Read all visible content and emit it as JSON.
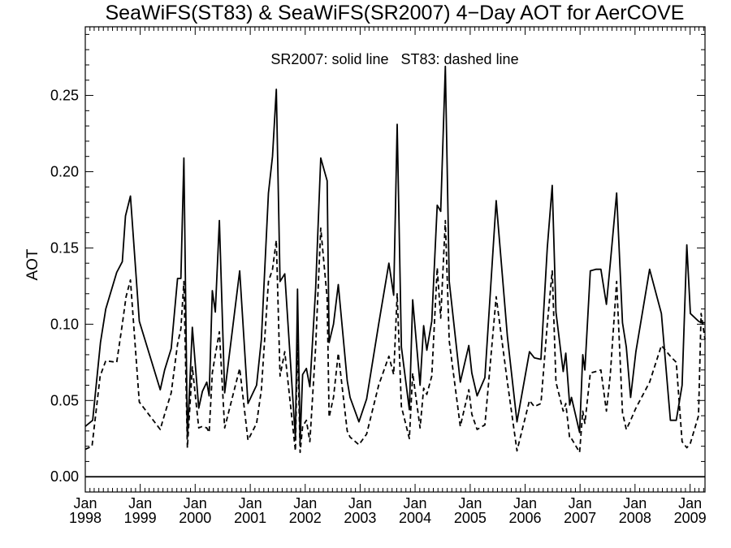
{
  "chart_data": {
    "type": "line",
    "title": "SeaWiFS(ST83) & SeaWiFS(SR2007) 4−Day AOT for AerCOVE",
    "annotation": "SR2007: solid line   ST83: dashed line",
    "xlabel": "",
    "ylabel": "AOT",
    "xlim": [
      "1998-01-01",
      "2009-04-10"
    ],
    "ylim": [
      -0.01,
      0.295
    ],
    "y_ticks": [
      "0.00",
      "0.05",
      "0.10",
      "0.15",
      "0.20",
      "0.25"
    ],
    "x_ticks": [
      {
        "month": "Jan",
        "year": "1998"
      },
      {
        "month": "Jan",
        "year": "1999"
      },
      {
        "month": "Jan",
        "year": "2000"
      },
      {
        "month": "Jan",
        "year": "2001"
      },
      {
        "month": "Jan",
        "year": "2002"
      },
      {
        "month": "Jan",
        "year": "2003"
      },
      {
        "month": "Jan",
        "year": "2004"
      },
      {
        "month": "Jan",
        "year": "2005"
      },
      {
        "month": "Jan",
        "year": "2006"
      },
      {
        "month": "Jan",
        "year": "2007"
      },
      {
        "month": "Jan",
        "year": "2008"
      },
      {
        "month": "Jan",
        "year": "2009"
      }
    ],
    "reference_line": 0.0,
    "grid": false,
    "series": [
      {
        "name": "SR2007",
        "style": "solid",
        "color": "#000000",
        "x": [
          "1998-01-01",
          "1998-02-19",
          "1998-04-12",
          "1998-05-17",
          "1998-07-29",
          "1998-09-04",
          "1998-09-25",
          "1998-10-28",
          "1998-12-26",
          "1999-05-14",
          "1999-06-12",
          "1999-07-26",
          "1999-09-06",
          "1999-09-28",
          "1999-10-18",
          "1999-11-10",
          "1999-12-13",
          "2000-01-25",
          "2000-02-18",
          "2000-03-18",
          "2000-04-03",
          "2000-04-24",
          "2000-05-14",
          "2000-06-10",
          "2000-07-15",
          "2000-10-23",
          "2000-12-17",
          "2001-02-12",
          "2001-03-16",
          "2001-05-02",
          "2001-05-29",
          "2001-06-23",
          "2001-07-18",
          "2001-08-18",
          "2001-10-28",
          "2001-11-11",
          "2001-11-28",
          "2001-12-15",
          "2002-01-09",
          "2002-02-01",
          "2002-03-11",
          "2002-04-14",
          "2002-05-27",
          "2002-06-09",
          "2002-07-08",
          "2002-08-09",
          "2002-10-07",
          "2002-10-26",
          "2002-12-24",
          "2003-02-13",
          "2003-05-04",
          "2003-07-11",
          "2003-08-12",
          "2003-09-04",
          "2003-10-02",
          "2003-11-24",
          "2003-12-16",
          "2004-02-03",
          "2004-02-27",
          "2004-03-19",
          "2004-04-21",
          "2004-05-27",
          "2004-06-19",
          "2004-07-20",
          "2004-08-15",
          "2004-10-27",
          "2004-12-23",
          "2005-01-12",
          "2005-02-16",
          "2005-04-09",
          "2005-06-23",
          "2005-09-05",
          "2005-11-08",
          "2006-01-30",
          "2006-03-03",
          "2006-04-16",
          "2006-05-28",
          "2006-06-30",
          "2006-07-25",
          "2006-09-11",
          "2006-09-28",
          "2006-10-24",
          "2006-11-05",
          "2006-12-29",
          "2007-01-19",
          "2007-02-02",
          "2007-03-10",
          "2007-04-16",
          "2007-05-19",
          "2007-06-25",
          "2007-07-21",
          "2007-09-01",
          "2007-10-10",
          "2007-11-04",
          "2007-12-03",
          "2008-01-07",
          "2008-04-07",
          "2008-06-24",
          "2008-08-23",
          "2008-10-01",
          "2008-11-09",
          "2008-12-10",
          "2009-01-03",
          "2009-02-26",
          "2009-03-15",
          "2009-04-10"
        ],
        "values": [
          0.033,
          0.037,
          0.088,
          0.11,
          0.134,
          0.141,
          0.171,
          0.184,
          0.102,
          0.057,
          0.07,
          0.084,
          0.13,
          0.13,
          0.209,
          0.026,
          0.098,
          0.045,
          0.056,
          0.062,
          0.053,
          0.122,
          0.108,
          0.168,
          0.055,
          0.135,
          0.048,
          0.06,
          0.09,
          0.186,
          0.21,
          0.254,
          0.128,
          0.133,
          0.025,
          0.123,
          0.023,
          0.067,
          0.071,
          0.059,
          0.123,
          0.209,
          0.194,
          0.088,
          0.1,
          0.126,
          0.063,
          0.052,
          0.036,
          0.051,
          0.1,
          0.14,
          0.119,
          0.231,
          0.085,
          0.044,
          0.116,
          0.06,
          0.099,
          0.083,
          0.102,
          0.178,
          0.174,
          0.269,
          0.128,
          0.062,
          0.086,
          0.068,
          0.053,
          0.065,
          0.181,
          0.092,
          0.036,
          0.082,
          0.078,
          0.077,
          0.15,
          0.191,
          0.108,
          0.069,
          0.081,
          0.047,
          0.052,
          0.029,
          0.08,
          0.07,
          0.135,
          0.136,
          0.136,
          0.113,
          0.14,
          0.186,
          0.101,
          0.085,
          0.052,
          0.082,
          0.136,
          0.107,
          0.037,
          0.037,
          0.06,
          0.152,
          0.107,
          0.102,
          0.101,
          0.101
        ]
      },
      {
        "name": "ST83",
        "style": "dashed",
        "color": "#000000",
        "x": [
          "1998-01-01",
          "1998-02-15",
          "1998-04-10",
          "1998-05-17",
          "1998-07-29",
          "1998-09-04",
          "1998-09-29",
          "1998-10-28",
          "1998-12-26",
          "1999-05-14",
          "1999-06-12",
          "1999-07-26",
          "1999-09-06",
          "1999-09-28",
          "1999-10-18",
          "1999-11-10",
          "1999-12-13",
          "2000-01-25",
          "2000-02-18",
          "2000-03-18",
          "2000-04-03",
          "2000-04-24",
          "2000-05-14",
          "2000-06-10",
          "2000-07-15",
          "2000-10-23",
          "2000-12-17",
          "2001-02-12",
          "2001-03-16",
          "2001-05-02",
          "2001-05-29",
          "2001-06-23",
          "2001-07-18",
          "2001-08-18",
          "2001-10-28",
          "2001-11-11",
          "2001-11-28",
          "2001-12-15",
          "2002-01-09",
          "2002-02-01",
          "2002-03-11",
          "2002-04-14",
          "2002-05-27",
          "2002-06-09",
          "2002-07-08",
          "2002-08-09",
          "2002-10-07",
          "2002-10-26",
          "2002-12-24",
          "2003-02-13",
          "2003-05-04",
          "2003-07-11",
          "2003-08-12",
          "2003-09-04",
          "2003-10-02",
          "2003-11-24",
          "2003-12-16",
          "2004-02-03",
          "2004-02-27",
          "2004-03-19",
          "2004-04-21",
          "2004-05-27",
          "2004-06-19",
          "2004-07-20",
          "2004-08-15",
          "2004-10-27",
          "2004-12-23",
          "2005-01-12",
          "2005-02-16",
          "2005-04-09",
          "2005-06-23",
          "2005-09-05",
          "2005-11-08",
          "2006-01-30",
          "2006-03-03",
          "2006-04-16",
          "2006-05-28",
          "2006-06-30",
          "2006-07-25",
          "2006-09-11",
          "2006-09-28",
          "2006-10-24",
          "2006-11-05",
          "2006-12-29",
          "2007-01-19",
          "2007-02-02",
          "2007-03-10",
          "2007-04-16",
          "2007-05-19",
          "2007-06-25",
          "2007-07-21",
          "2007-09-01",
          "2007-10-10",
          "2007-11-04",
          "2007-12-03",
          "2008-01-07",
          "2008-04-07",
          "2008-06-24",
          "2008-08-23",
          "2008-10-01",
          "2008-11-09",
          "2008-12-10",
          "2009-01-03",
          "2009-02-26",
          "2009-03-15",
          "2009-04-10"
        ],
        "values": [
          0.018,
          0.02,
          0.066,
          0.076,
          0.075,
          0.1,
          0.118,
          0.129,
          0.049,
          0.031,
          0.041,
          0.055,
          0.087,
          0.097,
          0.128,
          0.019,
          0.072,
          0.032,
          0.033,
          0.032,
          0.029,
          0.068,
          0.08,
          0.095,
          0.032,
          0.071,
          0.024,
          0.035,
          0.057,
          0.128,
          0.136,
          0.155,
          0.066,
          0.082,
          0.017,
          0.09,
          0.016,
          0.033,
          0.037,
          0.023,
          0.085,
          0.163,
          0.117,
          0.039,
          0.052,
          0.081,
          0.03,
          0.026,
          0.021,
          0.028,
          0.06,
          0.079,
          0.067,
          0.12,
          0.046,
          0.025,
          0.068,
          0.032,
          0.058,
          0.054,
          0.066,
          0.137,
          0.104,
          0.168,
          0.089,
          0.033,
          0.057,
          0.041,
          0.031,
          0.034,
          0.118,
          0.062,
          0.017,
          0.05,
          0.046,
          0.048,
          0.1,
          0.135,
          0.062,
          0.043,
          0.048,
          0.025,
          0.025,
          0.016,
          0.043,
          0.035,
          0.068,
          0.069,
          0.07,
          0.043,
          0.067,
          0.128,
          0.042,
          0.031,
          0.037,
          0.045,
          0.062,
          0.086,
          0.079,
          0.075,
          0.023,
          0.019,
          0.022,
          0.04,
          0.107,
          0.09
        ]
      }
    ]
  }
}
